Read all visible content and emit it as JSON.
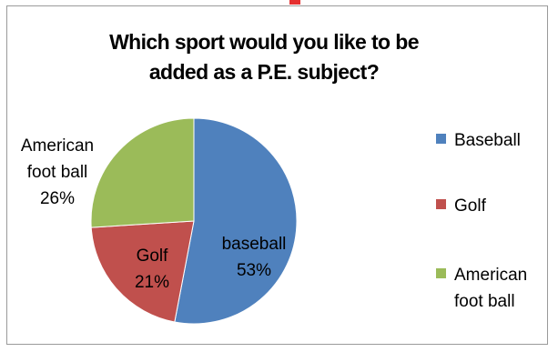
{
  "chart_data": {
    "type": "pie",
    "title_lines": [
      "Which sport would you like to be",
      "added as a P.E. subject?"
    ],
    "slices": [
      {
        "legend": "Baseball",
        "label_lines": [
          "baseball",
          "53%"
        ],
        "value": 53,
        "color": "#4f81bd"
      },
      {
        "legend": "Golf",
        "label_lines": [
          "Golf",
          "21%"
        ],
        "value": 21,
        "color": "#c0504d"
      },
      {
        "legend_lines": [
          "American",
          "foot ball"
        ],
        "label_lines": [
          "American",
          "foot ball",
          "26%"
        ],
        "value": 26,
        "color": "#9bbb59"
      }
    ],
    "legend_position": "right"
  }
}
